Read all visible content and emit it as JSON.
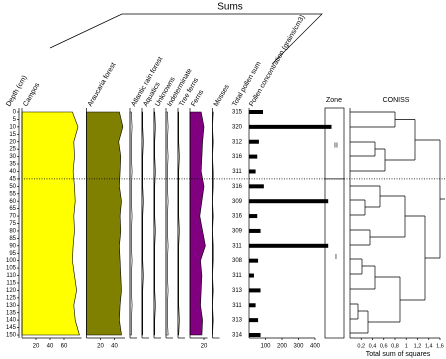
{
  "chart_data": {
    "type": "pollen",
    "sums_label": "Sums",
    "y_label": "Depth (cm)",
    "ylim": [
      0,
      150
    ],
    "yticks": [
      0,
      5,
      10,
      15,
      20,
      25,
      30,
      35,
      40,
      45,
      50,
      55,
      60,
      65,
      70,
      75,
      80,
      85,
      90,
      95,
      100,
      105,
      110,
      115,
      120,
      125,
      130,
      135,
      140,
      145,
      150
    ],
    "depths": [
      0,
      10,
      20,
      30,
      40,
      50,
      60,
      70,
      80,
      90,
      100,
      110,
      120,
      130,
      140,
      150
    ],
    "series": [
      {
        "name": "Campos",
        "color": "#ffff00",
        "xlim": [
          0,
          85
        ],
        "xticks": [
          20,
          40,
          60
        ],
        "values": [
          72,
          80,
          74,
          75,
          73,
          75,
          76,
          74,
          75,
          73,
          72,
          75,
          78,
          74,
          76,
          82
        ]
      },
      {
        "name": "Araucaria forest",
        "color": "#808000",
        "xlim": [
          0,
          55
        ],
        "xticks": [
          20,
          40
        ],
        "values": [
          47,
          52,
          46,
          49,
          48,
          47,
          50,
          48,
          49,
          47,
          48,
          49,
          50,
          48,
          47,
          50
        ]
      },
      {
        "name": "Atlantic rain forest",
        "color": "#ffffff",
        "xlim": [
          0,
          10
        ],
        "xticks": [],
        "values": [
          2,
          3,
          2,
          2,
          3,
          2,
          2,
          3,
          2,
          2,
          3,
          2,
          2,
          3,
          2,
          2
        ]
      },
      {
        "name": "Aquatics",
        "color": "#ffffff",
        "xlim": [
          0,
          10
        ],
        "xticks": [],
        "values": [
          1,
          1,
          2,
          1,
          1,
          1,
          2,
          1,
          1,
          1,
          1,
          2,
          1,
          1,
          1,
          1
        ]
      },
      {
        "name": "Unknowns",
        "color": "#ffffff",
        "xlim": [
          0,
          10
        ],
        "xticks": [],
        "values": [
          1,
          2,
          1,
          1,
          2,
          1,
          1,
          1,
          2,
          1,
          1,
          1,
          1,
          2,
          1,
          1
        ]
      },
      {
        "name": "Indeterminate",
        "color": "#ffffff",
        "xlim": [
          0,
          10
        ],
        "xticks": [],
        "values": [
          2,
          3,
          2,
          3,
          2,
          2,
          3,
          2,
          2,
          3,
          2,
          2,
          3,
          2,
          2,
          3
        ]
      },
      {
        "name": "Tree ferns",
        "color": "#ffffff",
        "xlim": [
          0,
          10
        ],
        "xticks": [],
        "values": [
          1,
          1,
          1,
          2,
          1,
          1,
          1,
          1,
          2,
          1,
          1,
          1,
          1,
          1,
          2,
          1
        ]
      },
      {
        "name": "Ferns",
        "color": "#800080",
        "xlim": [
          0,
          25
        ],
        "xticks": [
          20
        ],
        "values": [
          16,
          20,
          18,
          17,
          16,
          20,
          17,
          14,
          18,
          22,
          15,
          17,
          16,
          15,
          18,
          17
        ]
      },
      {
        "name": "Mosses",
        "color": "#ffffff",
        "xlim": [
          0,
          10
        ],
        "xticks": [],
        "values": [
          1,
          0,
          1,
          0,
          1,
          1,
          0,
          1,
          0,
          1,
          1,
          0,
          1,
          0,
          1,
          0
        ]
      }
    ],
    "totals_label": "Total pollen sum",
    "totals": [
      315,
      320,
      312,
      316,
      311,
      316,
      309,
      316,
      309,
      311,
      308,
      311,
      313,
      311,
      313,
      314
    ],
    "concentration": {
      "name": "Pollen concentration (grains/cm3)",
      "xlim": [
        0,
        400
      ],
      "xticks": [
        100,
        200,
        300,
        400
      ],
      "values": [
        85,
        500,
        60,
        50,
        40,
        90,
        480,
        50,
        70,
        480,
        55,
        30,
        70,
        40,
        55,
        70
      ]
    },
    "zone_label": "Zone",
    "zones": [
      "II",
      "I"
    ],
    "zone_boundary": 45,
    "coniss_label": "CONISS",
    "coniss_xlabel": "Total sum of squares",
    "coniss_xlim": [
      0,
      1.6
    ],
    "coniss_xticks": [
      {
        "value": 0.2,
        "label": "0,2"
      },
      {
        "value": 0.4,
        "label": "0,4"
      },
      {
        "value": 0.6,
        "label": "0,6"
      },
      {
        "value": 0.8,
        "label": "0,8"
      },
      1,
      {
        "value": 1.2,
        "label": "1,2"
      },
      {
        "value": 1.4,
        "label": "1,4"
      },
      {
        "value": 1.6,
        "label": "1,6"
      }
    ]
  }
}
